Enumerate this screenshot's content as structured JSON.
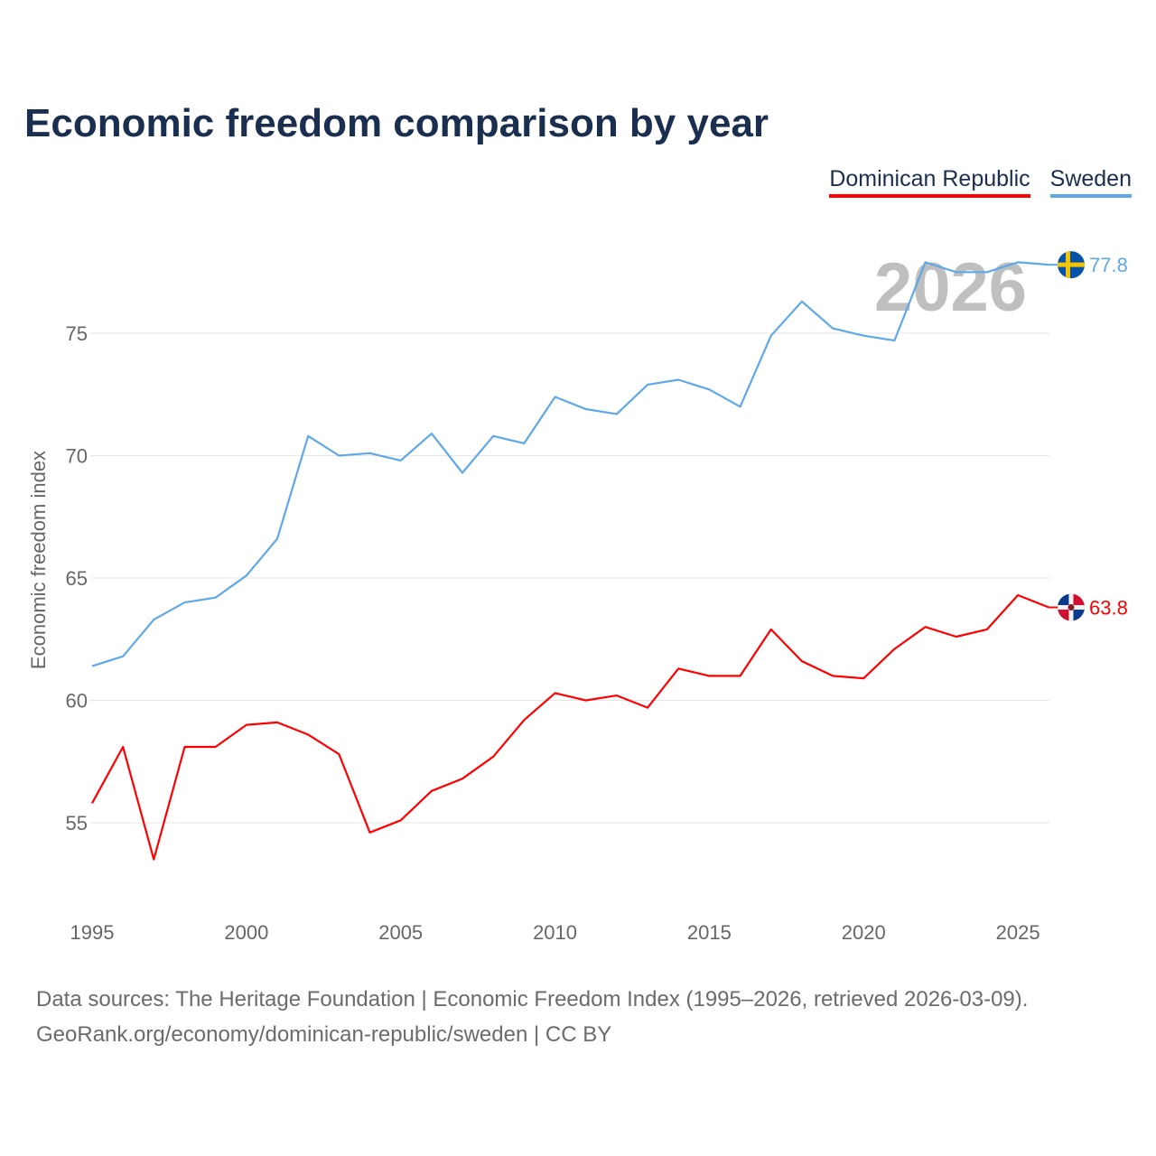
{
  "chart_data": {
    "type": "line",
    "title": "Economic freedom comparison by year",
    "ylabel": "Economic freedom index",
    "xlabel": "",
    "watermark_year": "2026",
    "ylim": [
      51.5,
      79
    ],
    "xlim": [
      1995,
      2026
    ],
    "yticks": [
      55,
      60,
      65,
      70,
      75
    ],
    "xticks": [
      1995,
      2000,
      2005,
      2010,
      2015,
      2020,
      2025
    ],
    "grid": true,
    "legend_position": "top-right",
    "x": [
      1995,
      1996,
      1997,
      1998,
      1999,
      2000,
      2001,
      2002,
      2003,
      2004,
      2005,
      2006,
      2007,
      2008,
      2009,
      2010,
      2011,
      2012,
      2013,
      2014,
      2015,
      2016,
      2017,
      2018,
      2019,
      2020,
      2021,
      2022,
      2023,
      2024,
      2025,
      2026
    ],
    "series": [
      {
        "name": "Dominican Republic",
        "color": "#ff0000",
        "end_label": "63.8",
        "values": [
          55.8,
          58.1,
          53.5,
          58.1,
          58.1,
          59.0,
          59.1,
          58.6,
          57.8,
          54.6,
          55.1,
          56.3,
          56.8,
          57.7,
          59.2,
          60.3,
          60.0,
          60.2,
          59.7,
          61.3,
          61.0,
          61.0,
          62.9,
          61.6,
          61.0,
          60.9,
          62.1,
          63.0,
          62.6,
          62.9,
          64.3,
          63.8
        ]
      },
      {
        "name": "Sweden",
        "color": "#5ea8ea",
        "end_label": "77.8",
        "values": [
          61.4,
          61.8,
          63.3,
          64.0,
          64.2,
          65.1,
          66.6,
          70.8,
          70.0,
          70.1,
          69.8,
          70.9,
          69.3,
          70.8,
          70.5,
          72.4,
          71.9,
          71.7,
          72.9,
          73.1,
          72.7,
          72.0,
          74.9,
          76.3,
          75.2,
          74.9,
          74.7,
          77.9,
          77.5,
          77.5,
          77.9,
          77.8
        ]
      }
    ]
  },
  "footer": {
    "line1": "Data sources: The Heritage Foundation | Economic Freedom Index (1995–2026, retrieved 2026-03-09).",
    "line2": "GeoRank.org/economy/dominican-republic/sweden | CC BY"
  }
}
